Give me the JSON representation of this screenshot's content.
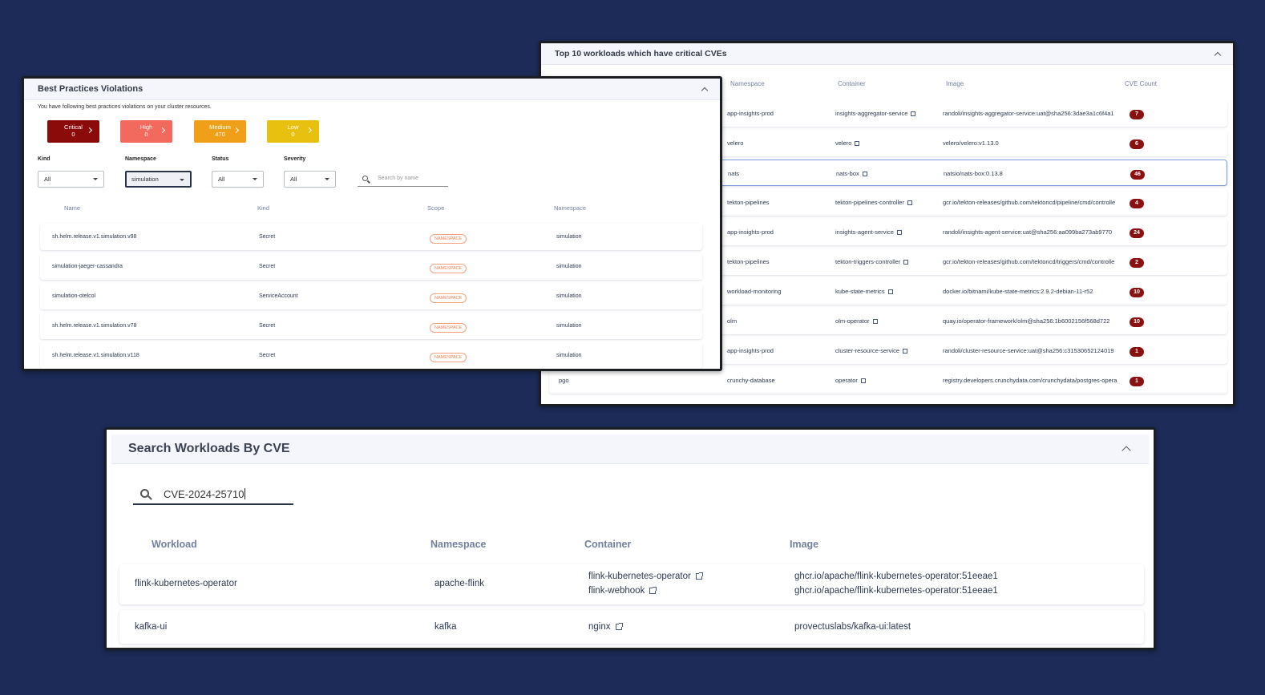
{
  "cve_panel": {
    "title": "Top 10 workloads which have critical CVEs",
    "columns": [
      "Namespace",
      "Container",
      "Image",
      "CVE Count"
    ],
    "rows": [
      {
        "workload": "",
        "namespace": "app-insights-prod",
        "container": "insights-aggregator-service",
        "image": "randoli/insights-aggregator-service:uat@sha256:3dae3a1c6f4a1",
        "count": "7"
      },
      {
        "workload": "",
        "namespace": "velero",
        "container": "velero",
        "image": "velero/velero:v1.13.0",
        "count": "6"
      },
      {
        "workload": "",
        "namespace": "nats",
        "container": "nats-box",
        "image": "natsio/nats-box:0.13.8",
        "count": "46"
      },
      {
        "workload": "",
        "namespace": "tekton-pipelines",
        "container": "tekton-pipelines-controller",
        "image": "gcr.io/tekton-releases/github.com/tektoncd/pipeline/cmd/controlle",
        "count": "4"
      },
      {
        "workload": "",
        "namespace": "app-insights-prod",
        "container": "insights-agent-service",
        "image": "randoli/insights-agent-service:uat@sha256:aa099ba273ab9770",
        "count": "24"
      },
      {
        "workload": "",
        "namespace": "tekton-pipelines",
        "container": "tekton-triggers-controller",
        "image": "gcr.io/tekton-releases/github.com/tektoncd/triggers/cmd/controlle",
        "count": "2"
      },
      {
        "workload": "",
        "namespace": "workload-monitoring",
        "container": "kube-state-metrics",
        "image": "docker.io/bitnami/kube-state-metrics:2.9.2-debian-11-r52",
        "count": "10"
      },
      {
        "workload": "",
        "namespace": "olm",
        "container": "olm-operator",
        "image": "quay.io/operator-framework/olm@sha256:1b6002156f568d722",
        "count": "10"
      },
      {
        "workload": "",
        "namespace": "app-insights-prod",
        "container": "cluster-resource-service",
        "image": "randoli/cluster-resource-service:uat@sha256:c31530652124019",
        "count": "1"
      },
      {
        "workload": "pgo",
        "namespace": "crunchy-database",
        "container": "operator",
        "image": "registry.developers.crunchydata.com/crunchydata/postgres-opera",
        "count": "1"
      }
    ]
  },
  "bp_panel": {
    "title": "Best Practices Violations",
    "subtitle": "You have following best practices violations on your cluster resources.",
    "severity_cards": [
      {
        "label": "Critical",
        "count": "0",
        "color": "#8b0a0a"
      },
      {
        "label": "High",
        "count": "0",
        "color": "#f26a5e"
      },
      {
        "label": "Medium",
        "count": "470",
        "color": "#f0a018"
      },
      {
        "label": "Low",
        "count": "0",
        "color": "#e8c010"
      }
    ],
    "filters": {
      "kind": {
        "label": "Kind",
        "value": "All"
      },
      "namespace": {
        "label": "Namespace",
        "value": "simulation"
      },
      "status": {
        "label": "Status",
        "value": "All"
      },
      "severity": {
        "label": "Severity",
        "value": "All"
      }
    },
    "search_placeholder": "Search by name",
    "columns": [
      "Name",
      "Kind",
      "Scope",
      "Namespace"
    ],
    "rows": [
      {
        "name": "sh.helm.release.v1.simulation.v98",
        "kind": "Secret",
        "scope": "NAMESPACE",
        "namespace": "simulation"
      },
      {
        "name": "simulation-jaeger-cassandra",
        "kind": "Secret",
        "scope": "NAMESPACE",
        "namespace": "simulation"
      },
      {
        "name": "simulation-otelcol",
        "kind": "ServiceAccount",
        "scope": "NAMESPACE",
        "namespace": "simulation"
      },
      {
        "name": "sh.helm.release.v1.simulation.v78",
        "kind": "Secret",
        "scope": "NAMESPACE",
        "namespace": "simulation"
      },
      {
        "name": "sh.helm.release.v1.simulation.v118",
        "kind": "Secret",
        "scope": "NAMESPACE",
        "namespace": "simulation"
      }
    ]
  },
  "search_panel": {
    "title": "Search Workloads By CVE",
    "search_value": "CVE-2024-25710",
    "columns": [
      "Workload",
      "Namespace",
      "Container",
      "Image"
    ],
    "rows": [
      {
        "workload": "flink-kubernetes-operator",
        "namespace": "apache-flink",
        "containers": [
          "flink-kubernetes-operator",
          "flink-webhook"
        ],
        "images": [
          "ghcr.io/apache/flink-kubernetes-operator:51eeae1",
          "ghcr.io/apache/flink-kubernetes-operator:51eeae1"
        ]
      },
      {
        "workload": "kafka-ui",
        "namespace": "kafka",
        "containers": [
          "nginx"
        ],
        "images": [
          "provectuslabs/kafka-ui:latest"
        ]
      }
    ]
  },
  "colors": {
    "background": "#1c2b57",
    "badge": "#8b1010",
    "namespace_chip": "#f08050"
  }
}
